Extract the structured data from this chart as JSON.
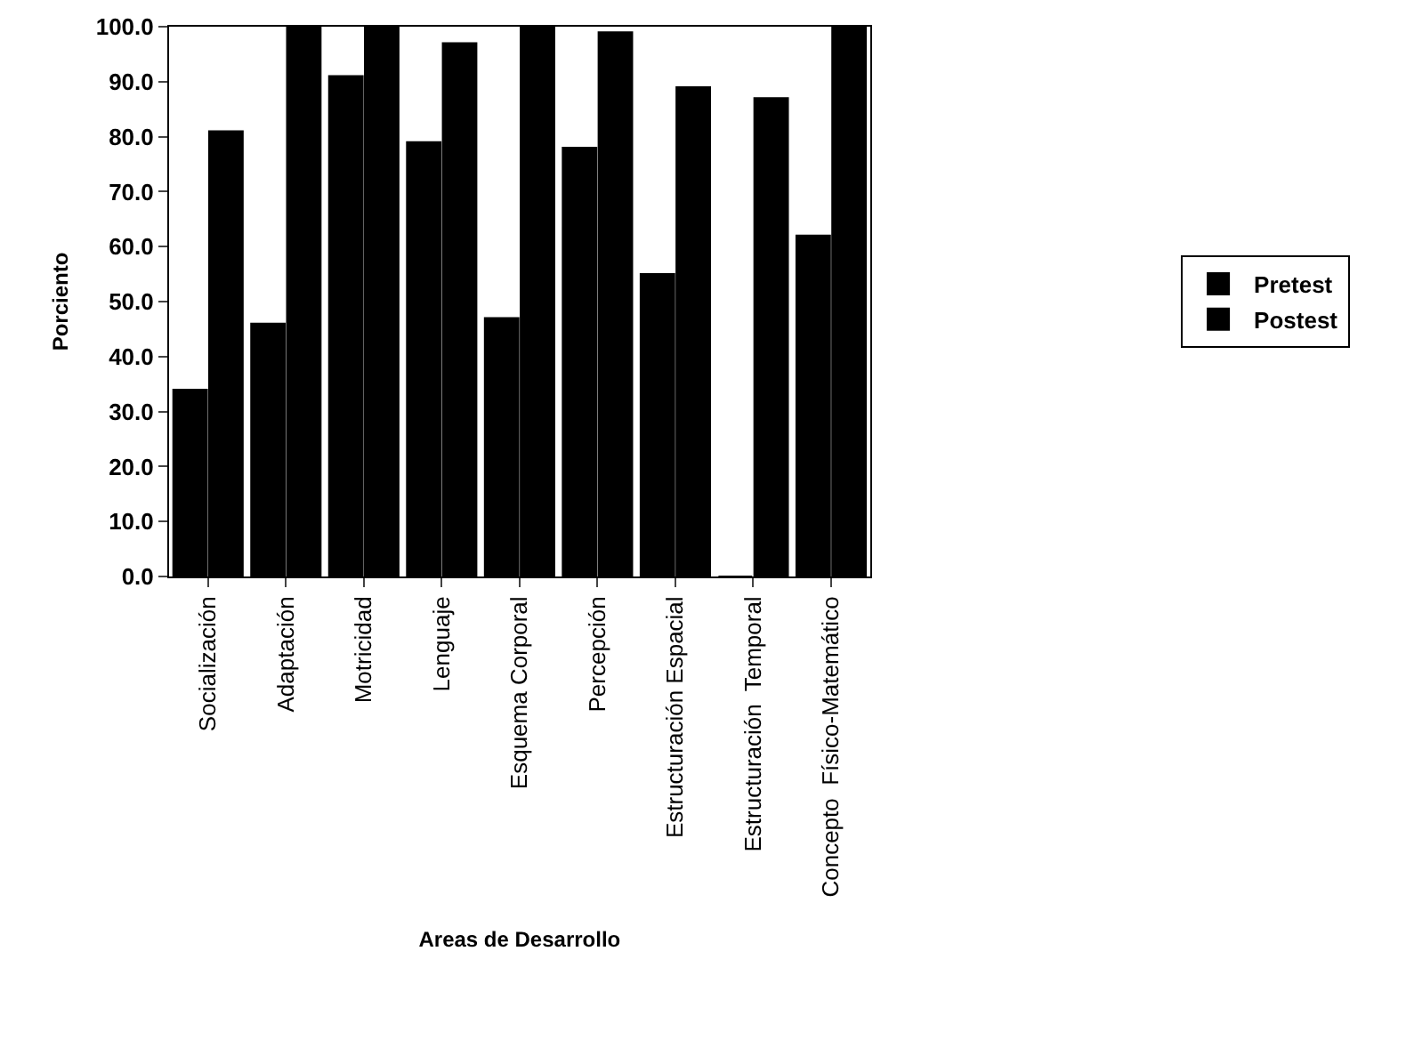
{
  "chart_data": {
    "type": "bar",
    "xlabel": "Areas de Desarrollo",
    "ylabel": "Porciento",
    "categories": [
      "Socialización",
      "Adaptación",
      "Motricidad",
      "Lenguaje",
      "Esquema Corporal",
      "Percepción",
      "Estructuración Espacial",
      "Estructuración  Temporal",
      "Concepto  Físico-Matemático"
    ],
    "series": [
      {
        "name": "Pretest",
        "color": "#000000",
        "values": [
          34,
          46,
          91,
          79,
          47,
          78,
          55,
          0,
          62
        ]
      },
      {
        "name": "Postest",
        "color": "#000000",
        "values": [
          81,
          100,
          100,
          97,
          100,
          99,
          89,
          87,
          100
        ]
      }
    ],
    "ylim": [
      0,
      100
    ],
    "yticks": [
      {
        "value": 0,
        "label": "0.0"
      },
      {
        "value": 10,
        "label": "10.0"
      },
      {
        "value": 20,
        "label": "20.0"
      },
      {
        "value": 30,
        "label": "30.0"
      },
      {
        "value": 40,
        "label": "40.0"
      },
      {
        "value": 50,
        "label": "50.0"
      },
      {
        "value": 60,
        "label": "60.0"
      },
      {
        "value": 70,
        "label": "70.0"
      },
      {
        "value": 80,
        "label": "80.0"
      },
      {
        "value": 90,
        "label": "90.0"
      },
      {
        "value": 100,
        "label": "100.0"
      }
    ],
    "grid": false,
    "legend": "right"
  }
}
